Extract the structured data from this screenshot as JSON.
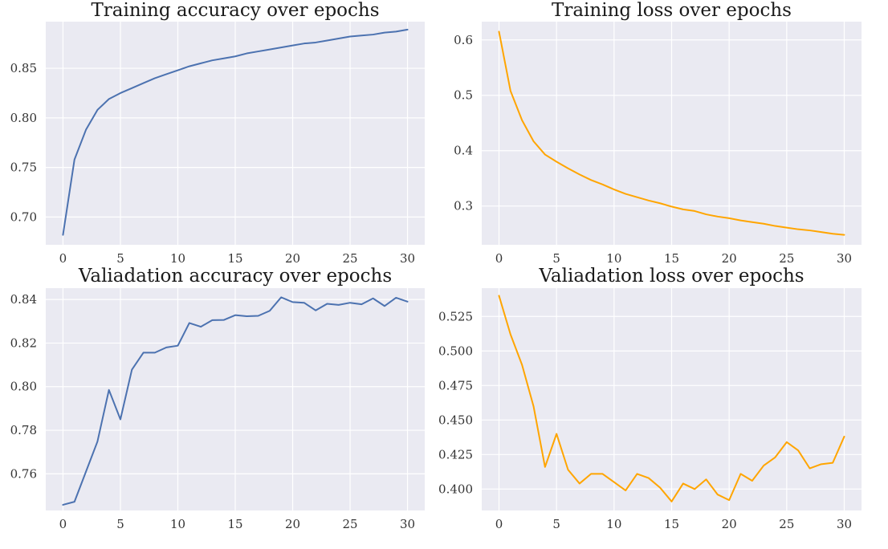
{
  "chart_data": [
    {
      "type": "line",
      "title": "Training accuracy over epochs",
      "xlabel": "",
      "ylabel": "",
      "xlim": [
        -1.5,
        31.5
      ],
      "ylim": [
        0.672,
        0.897
      ],
      "xticks": [
        0,
        5,
        10,
        15,
        20,
        25,
        30
      ],
      "yticks": [
        0.7,
        0.75,
        0.8,
        0.85
      ],
      "ytick_labels": [
        "0.70",
        "0.75",
        "0.80",
        "0.85"
      ],
      "grid": true,
      "color": "#4c72b0",
      "x": [
        0,
        1,
        2,
        3,
        4,
        5,
        6,
        7,
        8,
        9,
        10,
        11,
        12,
        13,
        14,
        15,
        16,
        17,
        18,
        19,
        20,
        21,
        22,
        23,
        24,
        25,
        26,
        27,
        28,
        29,
        30
      ],
      "series": [
        {
          "values": [
            0.682,
            0.758,
            0.788,
            0.808,
            0.819,
            0.825,
            0.83,
            0.835,
            0.84,
            0.844,
            0.848,
            0.852,
            0.855,
            0.858,
            0.86,
            0.862,
            0.865,
            0.867,
            0.869,
            0.871,
            0.873,
            0.875,
            0.876,
            0.878,
            0.88,
            0.882,
            0.883,
            0.884,
            0.886,
            0.887,
            0.889
          ]
        }
      ]
    },
    {
      "type": "line",
      "title": "Training loss over epochs",
      "xlabel": "",
      "ylabel": "",
      "xlim": [
        -1.5,
        31.5
      ],
      "ylim": [
        0.23,
        0.633
      ],
      "xticks": [
        0,
        5,
        10,
        15,
        20,
        25,
        30
      ],
      "yticks": [
        0.3,
        0.4,
        0.5,
        0.6
      ],
      "ytick_labels": [
        "0.3",
        "0.4",
        "0.5",
        "0.6"
      ],
      "grid": true,
      "color": "#ffa500",
      "x": [
        0,
        1,
        2,
        3,
        4,
        5,
        6,
        7,
        8,
        9,
        10,
        11,
        12,
        13,
        14,
        15,
        16,
        17,
        18,
        19,
        20,
        21,
        22,
        23,
        24,
        25,
        26,
        27,
        28,
        29,
        30
      ],
      "series": [
        {
          "values": [
            0.615,
            0.508,
            0.455,
            0.417,
            0.393,
            0.38,
            0.368,
            0.357,
            0.347,
            0.339,
            0.33,
            0.322,
            0.316,
            0.31,
            0.305,
            0.299,
            0.294,
            0.291,
            0.285,
            0.281,
            0.278,
            0.274,
            0.271,
            0.268,
            0.264,
            0.261,
            0.258,
            0.256,
            0.253,
            0.25,
            0.248
          ]
        }
      ]
    },
    {
      "type": "line",
      "title": "Valiadation accuracy over epochs",
      "xlabel": "",
      "ylabel": "",
      "xlim": [
        -1.5,
        31.5
      ],
      "ylim": [
        0.7432,
        0.8452
      ],
      "xticks": [
        0,
        5,
        10,
        15,
        20,
        25,
        30
      ],
      "yticks": [
        0.76,
        0.78,
        0.8,
        0.82,
        0.84
      ],
      "ytick_labels": [
        "0.76",
        "0.78",
        "0.80",
        "0.82",
        "0.84"
      ],
      "grid": true,
      "color": "#4c72b0",
      "x": [
        0,
        1,
        2,
        3,
        4,
        5,
        6,
        7,
        8,
        9,
        10,
        11,
        12,
        13,
        14,
        15,
        16,
        17,
        18,
        19,
        20,
        21,
        22,
        23,
        24,
        25,
        26,
        27,
        28,
        29,
        30
      ],
      "series": [
        {
          "values": [
            0.7458,
            0.7472,
            0.761,
            0.7748,
            0.7985,
            0.785,
            0.8078,
            0.8156,
            0.8156,
            0.818,
            0.8188,
            0.8292,
            0.8275,
            0.8305,
            0.8306,
            0.8328,
            0.8323,
            0.8325,
            0.8348,
            0.841,
            0.8388,
            0.8385,
            0.835,
            0.838,
            0.8375,
            0.8385,
            0.8378,
            0.8405,
            0.837,
            0.8408,
            0.839
          ]
        }
      ]
    },
    {
      "type": "line",
      "title": "Valiadation loss over epochs",
      "xlabel": "",
      "ylabel": "",
      "xlim": [
        -1.5,
        31.5
      ],
      "ylim": [
        0.3845,
        0.5455
      ],
      "xticks": [
        0,
        5,
        10,
        15,
        20,
        25,
        30
      ],
      "yticks": [
        0.4,
        0.425,
        0.45,
        0.475,
        0.5,
        0.525
      ],
      "ytick_labels": [
        "0.400",
        "0.425",
        "0.450",
        "0.475",
        "0.500",
        "0.525"
      ],
      "grid": true,
      "color": "#ffa500",
      "x": [
        0,
        1,
        2,
        3,
        4,
        5,
        6,
        7,
        8,
        9,
        10,
        11,
        12,
        13,
        14,
        15,
        16,
        17,
        18,
        19,
        20,
        21,
        22,
        23,
        24,
        25,
        26,
        27,
        28,
        29,
        30
      ],
      "series": [
        {
          "values": [
            0.54,
            0.512,
            0.49,
            0.46,
            0.416,
            0.44,
            0.414,
            0.404,
            0.411,
            0.411,
            0.405,
            0.399,
            0.411,
            0.408,
            0.401,
            0.391,
            0.404,
            0.4,
            0.407,
            0.396,
            0.392,
            0.411,
            0.406,
            0.417,
            0.423,
            0.434,
            0.428,
            0.415,
            0.418,
            0.419,
            0.438
          ]
        }
      ]
    }
  ]
}
